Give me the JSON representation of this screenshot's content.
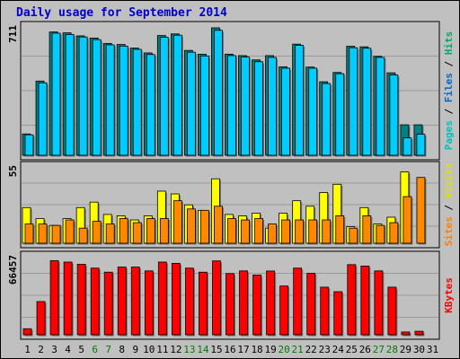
{
  "chart_data": {
    "type": "bar",
    "title": "Daily usage for September 2014",
    "days": [
      "1",
      "2",
      "3",
      "4",
      "5",
      "6",
      "7",
      "8",
      "9",
      "10",
      "11",
      "12",
      "13",
      "14",
      "15",
      "16",
      "17",
      "18",
      "19",
      "20",
      "21",
      "22",
      "23",
      "24",
      "25",
      "26",
      "27",
      "28",
      "29",
      "30",
      "31"
    ],
    "weekend_days": [
      "6",
      "7",
      "13",
      "14",
      "20",
      "21",
      "27",
      "28"
    ],
    "panels": [
      {
        "id": "pages-files-hits",
        "max_label": "711",
        "ymax": 711,
        "axis_label_parts": [
          {
            "text": "Pages",
            "color": "#00c0c0"
          },
          {
            "text": " / ",
            "color": "#000000"
          },
          {
            "text": "Files",
            "color": "#0066cc"
          },
          {
            "text": " / ",
            "color": "#000000"
          },
          {
            "text": "Hits",
            "color": "#00aa66"
          }
        ],
        "series": [
          {
            "name": "Hits",
            "color": "#008080",
            "values": [
              119,
              414,
              688,
              683,
              666,
              654,
              624,
              618,
              598,
              571,
              668,
              677,
              585,
              564,
              711,
              564,
              556,
              532,
              556,
              493,
              620,
              492,
              410,
              462,
              608,
              605,
              552,
              460,
              170,
              170,
              0
            ]
          },
          {
            "name": "Files",
            "color": "#00ccff",
            "values": [
              114,
              404,
              681,
              674,
              660,
              645,
              616,
              609,
              591,
              562,
              658,
              670,
              575,
              554,
              697,
              556,
              548,
              522,
              546,
              486,
              613,
              486,
              400,
              455,
              600,
              597,
              546,
              448,
              97,
              117,
              0
            ]
          }
        ]
      },
      {
        "id": "sites-visits",
        "max_label": "55",
        "ymax": 55,
        "axis_label_parts": [
          {
            "text": "Sites",
            "color": "#ff8000"
          },
          {
            "text": " / ",
            "color": "#000000"
          },
          {
            "text": "Visits",
            "color": "#e0e000"
          }
        ],
        "series": [
          {
            "name": "Visits",
            "color": "#ffff00",
            "values": [
              26,
              18,
              13,
              18,
              26,
              30,
              21,
              20,
              17,
              20,
              38,
              36,
              28,
              24,
              47,
              21,
              20,
              22,
              11,
              22,
              31,
              27,
              37,
              43,
              12,
              26,
              14,
              19,
              52,
              0,
              0
            ]
          },
          {
            "name": "Sites",
            "color": "#ff8800",
            "values": [
              14,
              14,
              13,
              17,
              11,
              16,
              14,
              18,
              15,
              18,
              18,
              31,
              25,
              24,
              27,
              18,
              17,
              18,
              14,
              17,
              17,
              17,
              17,
              20,
              11,
              20,
              13,
              15,
              34,
              48,
              0
            ]
          }
        ]
      },
      {
        "id": "kbytes",
        "max_label": "66457",
        "ymax": 66457,
        "axis_label_parts": [
          {
            "text": "KBytes",
            "color": "#ff0000"
          }
        ],
        "series": [
          {
            "name": "KBytes",
            "color": "#ff0000",
            "values": [
              5200,
              28600,
              63800,
              62600,
              60700,
              57400,
              53900,
              58300,
              58300,
              55000,
              62600,
              61500,
              57400,
              53900,
              63600,
              52700,
              55000,
              51500,
              54900,
              42000,
              57400,
              52900,
              41000,
              37100,
              60400,
              59200,
              55000,
              41000,
              2400,
              3000,
              0
            ]
          }
        ]
      }
    ]
  }
}
